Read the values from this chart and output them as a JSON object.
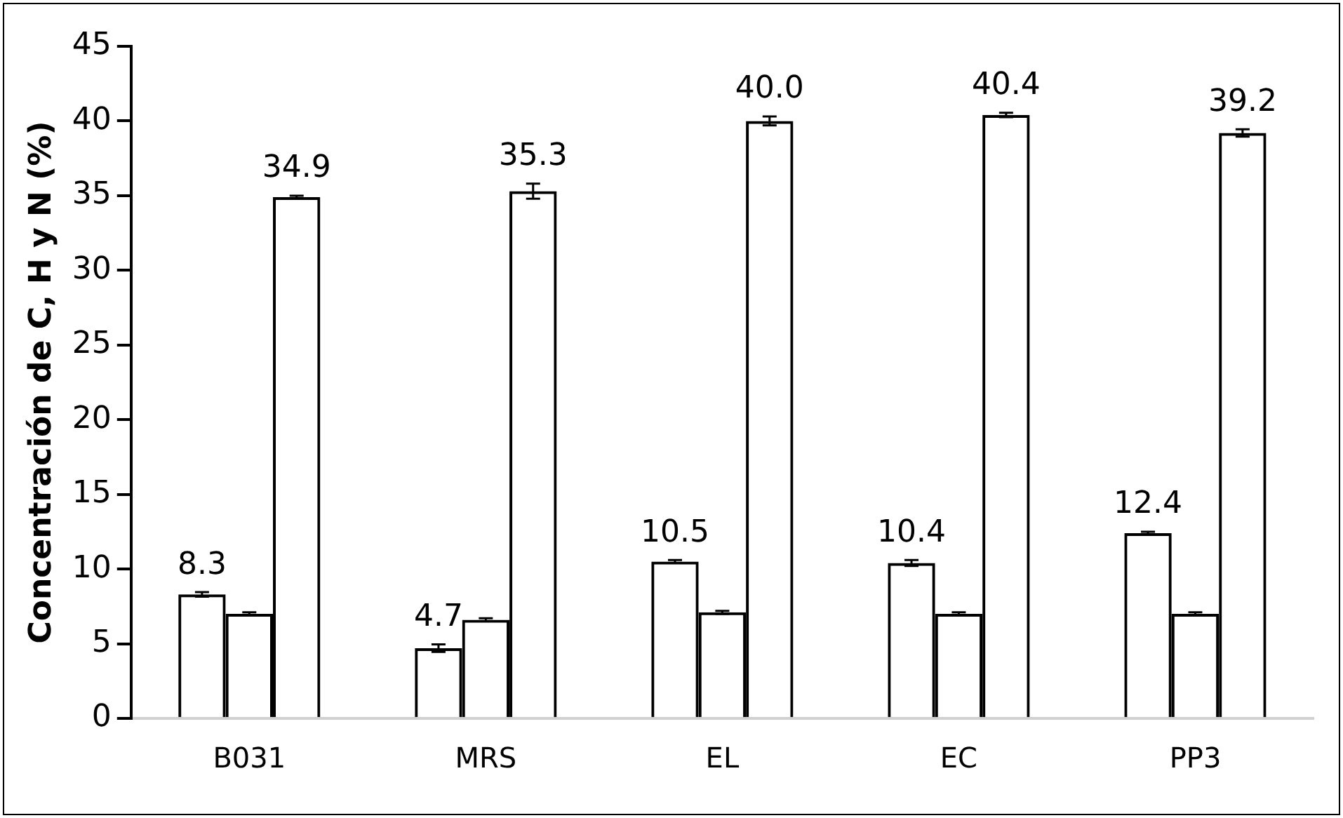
{
  "chart_data": {
    "type": "bar",
    "ylabel": "Concentración de C, H y N (%)",
    "categories": [
      "B031",
      "MRS",
      "EL",
      "EC",
      "PP3"
    ],
    "ylim": [
      0,
      45
    ],
    "yticks": [
      0,
      5,
      10,
      15,
      20,
      25,
      30,
      35,
      40,
      45
    ],
    "grid": false,
    "legend": false,
    "series": [
      {
        "color": "#000000",
        "values": [
          8.3,
          4.7,
          10.5,
          10.4,
          12.4
        ],
        "errors": [
          0.15,
          0.25,
          0.1,
          0.2,
          0.1
        ],
        "value_labels": [
          "8.3",
          "4.7",
          "10.5",
          "10.4",
          "12.4"
        ]
      },
      {
        "color": "#000000",
        "values": [
          7.0,
          6.6,
          7.1,
          7.0,
          7.0
        ],
        "errors": [
          0.1,
          0.1,
          0.1,
          0.1,
          0.1
        ]
      },
      {
        "color": "#000000",
        "values": [
          34.9,
          35.3,
          40.0,
          40.4,
          39.2
        ],
        "errors": [
          0.1,
          0.5,
          0.3,
          0.15,
          0.25
        ],
        "value_labels": [
          "34.9",
          "35.3",
          "40.0",
          "40.4",
          "39.2"
        ]
      }
    ]
  }
}
